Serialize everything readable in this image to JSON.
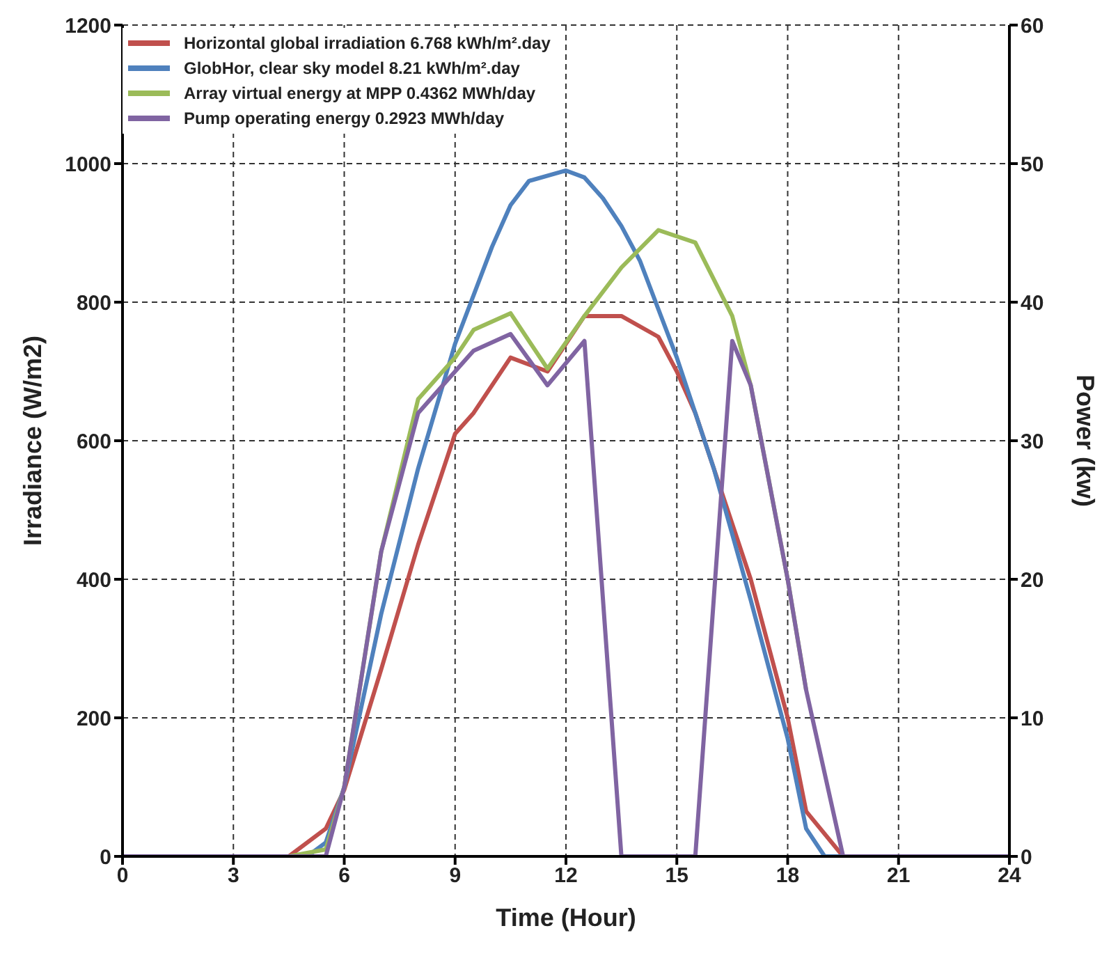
{
  "chart_data": {
    "type": "line",
    "xlabel": "Time (Hour)",
    "ylabel": "Irradiance (W/m2)",
    "y2label": "Power  (kw)",
    "xlim": [
      0,
      24
    ],
    "xticks": [
      0,
      3,
      6,
      9,
      12,
      15,
      18,
      21,
      24
    ],
    "ylim": [
      0,
      1200
    ],
    "yticks": [
      0,
      200,
      400,
      600,
      800,
      1000,
      1200
    ],
    "y2lim": [
      0,
      60
    ],
    "y2ticks": [
      0,
      10,
      20,
      30,
      40,
      50,
      60
    ],
    "grid": true,
    "legend": "top left",
    "marker": "none",
    "line_style": "solid",
    "series": [
      {
        "name": "Horizontal global irradiation 6.768 kWh/m².day",
        "color": "#c0504d",
        "x": [
          0,
          4.5,
          5.5,
          6,
          7,
          8,
          9,
          9.5,
          10.5,
          11.5,
          12.5,
          13.5,
          14.5,
          15,
          15.5,
          16,
          17,
          18,
          18.5,
          19.5,
          24
        ],
        "values": [
          0,
          0,
          40,
          96,
          270,
          450,
          610,
          640,
          720,
          700,
          780,
          780,
          750,
          700,
          640,
          560,
          400,
          200,
          65,
          0,
          0
        ]
      },
      {
        "name": "GlobHor, clear sky model 8.21 kWh/m².day",
        "color": "#4f81bd",
        "x": [
          0,
          5,
          5.5,
          6,
          7,
          8,
          9,
          10,
          10.5,
          11,
          12,
          12.5,
          13,
          13.5,
          14,
          14.5,
          15,
          16,
          17,
          18,
          18.5,
          19,
          24
        ],
        "values": [
          0,
          0,
          20,
          100,
          350,
          560,
          740,
          880,
          940,
          975,
          990,
          980,
          950,
          910,
          860,
          790,
          720,
          560,
          370,
          170,
          40,
          0,
          0
        ]
      },
      {
        "name": "Array virtual energy at MPP 0.4362 MWh/day",
        "color": "#9bbb59",
        "axis": "y2",
        "x": [
          0,
          4.5,
          5.5,
          6,
          7,
          8,
          9,
          9.5,
          10.5,
          11.5,
          12.5,
          13.5,
          14.5,
          15.5,
          16.5,
          17,
          18,
          18.5
        ],
        "values": [
          0,
          0,
          0.5,
          5,
          22,
          33,
          36,
          38,
          39.2,
          35.2,
          39,
          42.5,
          45.2,
          44.3,
          39,
          34,
          20,
          12
        ]
      },
      {
        "name": "Pump operating energy 0.2923 MWh/day",
        "color": "#8064a2",
        "axis": "y2",
        "x": [
          0,
          5.5,
          6,
          7,
          8,
          9,
          9.5,
          10.5,
          11.5,
          12.5,
          13.5,
          15.5,
          16.5,
          17,
          18,
          18.5,
          19.5,
          24
        ],
        "values": [
          0,
          0,
          5,
          22,
          32,
          35,
          36.5,
          37.7,
          34,
          37.2,
          0,
          0,
          37.2,
          34,
          20,
          12,
          0,
          0
        ]
      }
    ]
  }
}
